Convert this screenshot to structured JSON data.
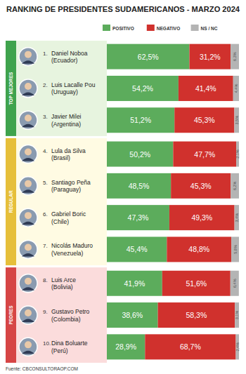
{
  "chart_data": {
    "type": "bar",
    "orientation": "horizontal",
    "stacked": true,
    "data_labels": true,
    "tick_labels": false,
    "grid": false,
    "title": "RANKING DE PRESIDENTES SUDAMERICANOS - MARZO 2024",
    "source": "Fuente: CBCONSULTORAOP.COM",
    "ranks": [
      "1.",
      "2.",
      "3.",
      "4.",
      "5.",
      "6.",
      "7.",
      "8.",
      "9.",
      "10."
    ],
    "categories": [
      "Daniel Noboa",
      "Luis Lacalle Pou",
      "Javier Milei",
      "Lula da Silva",
      "Santiago Peña",
      "Gabriel Boric",
      "Nicolás Maduro",
      "Luis Arce",
      "Gustavo Petro",
      "Dina Boluarte"
    ],
    "countries": [
      "(Ecuador)",
      "(Uruguay)",
      "(Argentina)",
      "(Brasil)",
      "(Paraguay)",
      "(Chile)",
      "(Venezuela)",
      "(Bolivia)",
      "(Colombia)",
      "(Perú)"
    ],
    "sections": [
      {
        "label": "TOP MEJORES",
        "size": 3
      },
      {
        "label": "REGULAR",
        "size": 4
      },
      {
        "label": "PEORES",
        "size": 3
      }
    ],
    "xlim": [
      0,
      100
    ],
    "series": [
      {
        "name": "POSITIVO",
        "color": "#5cac5c",
        "values": [
          62.5,
          54.2,
          51.2,
          50.2,
          48.5,
          47.3,
          45.4,
          41.9,
          38.6,
          28.9
        ],
        "value_labels": [
          "62,5%",
          "54,2%",
          "51,2%",
          "50,2%",
          "48,5%",
          "47,3%",
          "45,4%",
          "41,9%",
          "38,6%",
          "28,9%"
        ]
      },
      {
        "name": "NEGATIVO",
        "color": "#d0312d",
        "values": [
          31.2,
          41.4,
          45.3,
          47.7,
          45.3,
          49.3,
          48.8,
          51.6,
          58.3,
          68.7
        ],
        "value_labels": [
          "31,2%",
          "41,4%",
          "45,3%",
          "47,7%",
          "45,3%",
          "49,3%",
          "48,8%",
          "51,6%",
          "58,3%",
          "68,7%"
        ]
      },
      {
        "name": "NS / NC",
        "color": "#b4b4b4",
        "values": [
          6.3,
          4.4,
          3.5,
          2.1,
          6.2,
          3.4,
          5.8,
          6.4,
          3.1,
          2.4
        ],
        "value_labels": [
          "6,3%",
          "4,4%",
          "3,5%",
          "2,1%",
          "6,2%",
          "3,4%",
          "5,8%",
          "6,4%",
          "3,1%",
          "2,4%"
        ]
      }
    ]
  }
}
